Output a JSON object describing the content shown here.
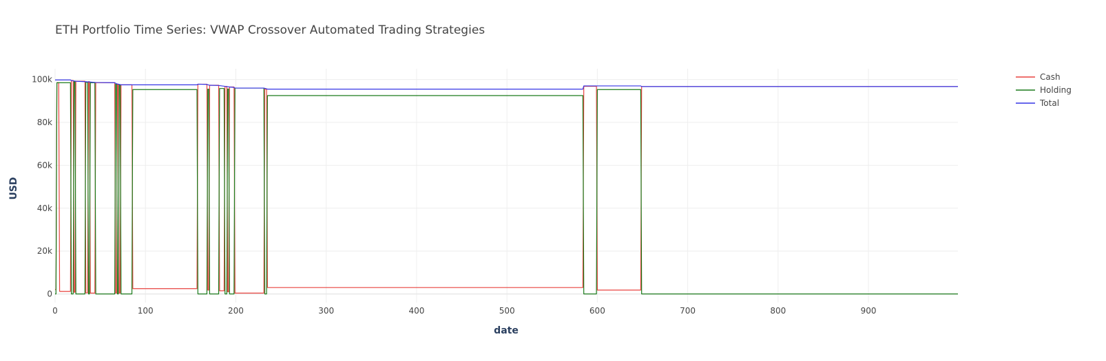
{
  "chart_data": {
    "type": "line",
    "title": "ETH Portfolio Time Series: VWAP Crossover Automated Trading Strategies",
    "xlabel": "date",
    "ylabel": "USD",
    "xlim": [
      0,
      999
    ],
    "ylim": [
      -4000,
      105000
    ],
    "x_ticks": [
      0,
      100,
      200,
      300,
      400,
      500,
      600,
      700,
      800,
      900
    ],
    "x_tick_labels": [
      "0",
      "100",
      "200",
      "300",
      "400",
      "500",
      "600",
      "700",
      "800",
      "900"
    ],
    "y_ticks": [
      0,
      20000,
      40000,
      60000,
      80000,
      100000
    ],
    "y_tick_labels": [
      "0",
      "20k",
      "40k",
      "60k",
      "80k",
      "100k"
    ],
    "grid": true,
    "legend_position": "top-right",
    "series": [
      {
        "name": "Cash",
        "color": "#e8423f",
        "points": [
          [
            0,
            2000
          ],
          [
            1,
            2000
          ],
          [
            2,
            98500
          ],
          [
            4,
            98500
          ],
          [
            5,
            1200
          ],
          [
            17,
            1200
          ],
          [
            18,
            99500
          ],
          [
            20,
            99500
          ],
          [
            21,
            800
          ],
          [
            22,
            800
          ],
          [
            23,
            99200
          ],
          [
            33,
            99200
          ],
          [
            34,
            500
          ],
          [
            36,
            500
          ],
          [
            37,
            99000
          ],
          [
            38,
            99000
          ],
          [
            39,
            400
          ],
          [
            44,
            400
          ],
          [
            45,
            98500
          ],
          [
            66,
            98500
          ],
          [
            67,
            400
          ],
          [
            68,
            400
          ],
          [
            69,
            97800
          ],
          [
            70,
            97800
          ],
          [
            71,
            400
          ],
          [
            72,
            400
          ],
          [
            73,
            97500
          ],
          [
            85,
            97500
          ],
          [
            86,
            2500
          ],
          [
            157,
            2500
          ],
          [
            158,
            97800
          ],
          [
            168,
            97800
          ],
          [
            169,
            1800
          ],
          [
            170,
            1800
          ],
          [
            171,
            97300
          ],
          [
            181,
            97300
          ],
          [
            182,
            1500
          ],
          [
            187,
            1500
          ],
          [
            188,
            96800
          ],
          [
            190,
            96800
          ],
          [
            191,
            1000
          ],
          [
            192,
            1000
          ],
          [
            193,
            96500
          ],
          [
            198,
            96500
          ],
          [
            199,
            400
          ],
          [
            231,
            400
          ],
          [
            232,
            95500
          ],
          [
            234,
            95500
          ],
          [
            235,
            3000
          ],
          [
            584,
            3000
          ],
          [
            585,
            96800
          ],
          [
            599,
            96800
          ],
          [
            600,
            1800
          ],
          [
            648,
            1800
          ],
          [
            649,
            96700
          ],
          [
            999,
            96700
          ]
        ]
      },
      {
        "name": "Holding",
        "color": "#1a7a1a",
        "points": [
          [
            0,
            0
          ],
          [
            1,
            0
          ],
          [
            2,
            98500
          ],
          [
            4,
            98500
          ],
          [
            5,
            98500
          ],
          [
            17,
            98500
          ],
          [
            18,
            0
          ],
          [
            20,
            0
          ],
          [
            21,
            99000
          ],
          [
            22,
            99000
          ],
          [
            23,
            0
          ],
          [
            33,
            0
          ],
          [
            34,
            98700
          ],
          [
            36,
            98700
          ],
          [
            37,
            0
          ],
          [
            38,
            0
          ],
          [
            39,
            98500
          ],
          [
            44,
            98500
          ],
          [
            45,
            0
          ],
          [
            66,
            0
          ],
          [
            67,
            97800
          ],
          [
            68,
            97800
          ],
          [
            69,
            0
          ],
          [
            70,
            0
          ],
          [
            71,
            97500
          ],
          [
            72,
            97500
          ],
          [
            73,
            0
          ],
          [
            85,
            0
          ],
          [
            86,
            95300
          ],
          [
            157,
            95300
          ],
          [
            158,
            0
          ],
          [
            168,
            0
          ],
          [
            169,
            95500
          ],
          [
            170,
            95500
          ],
          [
            171,
            0
          ],
          [
            181,
            0
          ],
          [
            182,
            95800
          ],
          [
            187,
            95800
          ],
          [
            188,
            0
          ],
          [
            190,
            0
          ],
          [
            191,
            95600
          ],
          [
            192,
            95600
          ],
          [
            193,
            0
          ],
          [
            198,
            0
          ],
          [
            199,
            96000
          ],
          [
            231,
            96000
          ],
          [
            232,
            0
          ],
          [
            234,
            0
          ],
          [
            235,
            92500
          ],
          [
            584,
            92500
          ],
          [
            585,
            0
          ],
          [
            599,
            0
          ],
          [
            600,
            95300
          ],
          [
            648,
            95300
          ],
          [
            649,
            0
          ],
          [
            999,
            0
          ]
        ]
      },
      {
        "name": "Total",
        "color": "#3535e6",
        "points": [
          [
            0,
            99800
          ],
          [
            17,
            99800
          ],
          [
            18,
            99500
          ],
          [
            23,
            99200
          ],
          [
            33,
            99000
          ],
          [
            45,
            98600
          ],
          [
            66,
            98500
          ],
          [
            68,
            98000
          ],
          [
            73,
            97500
          ],
          [
            157,
            97500
          ],
          [
            158,
            97800
          ],
          [
            168,
            97700
          ],
          [
            171,
            97300
          ],
          [
            181,
            97200
          ],
          [
            188,
            96800
          ],
          [
            193,
            96500
          ],
          [
            198,
            96300
          ],
          [
            199,
            96000
          ],
          [
            231,
            96000
          ],
          [
            235,
            95500
          ],
          [
            584,
            95500
          ],
          [
            585,
            97000
          ],
          [
            648,
            97000
          ],
          [
            649,
            96700
          ],
          [
            999,
            96700
          ]
        ]
      }
    ]
  }
}
